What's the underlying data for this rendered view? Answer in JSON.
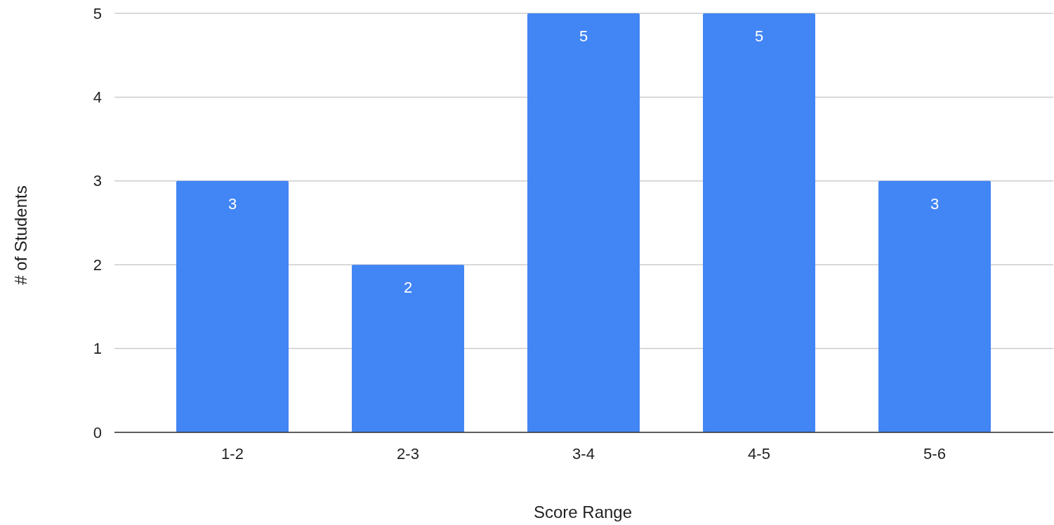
{
  "chart_data": {
    "type": "bar",
    "xlabel": "Score Range",
    "ylabel": "# of Students",
    "categories": [
      "1-2",
      "2-3",
      "3-4",
      "4-5",
      "5-6"
    ],
    "values": [
      3,
      2,
      5,
      5,
      3
    ],
    "color": "#4285f4",
    "ylim": [
      0,
      5
    ],
    "yticks": [
      0,
      1,
      2,
      3,
      4,
      5
    ],
    "grid": "y",
    "data_labels": true
  }
}
